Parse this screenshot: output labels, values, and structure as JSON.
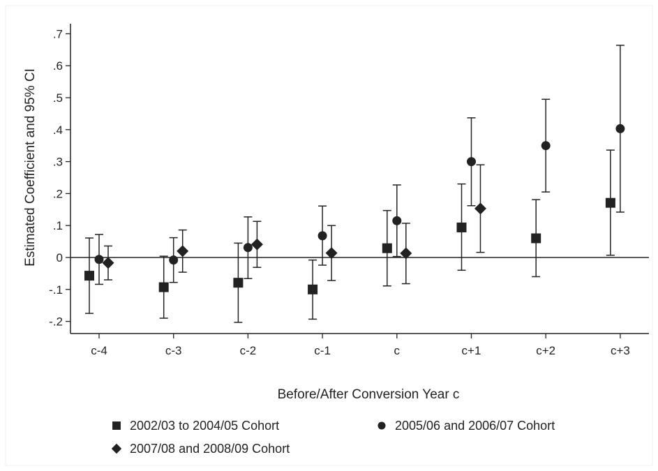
{
  "chart_data": {
    "type": "scatter",
    "title": "",
    "xlabel": "Before/After Conversion Year c",
    "ylabel": "Estimated Coefficient and 95% CI",
    "categories": [
      "c-4",
      "c-3",
      "c-2",
      "c-1",
      "c",
      "c+1",
      "c+2",
      "c+3"
    ],
    "ylim": [
      -0.2,
      0.7
    ],
    "yticks": [
      -0.2,
      -0.1,
      0,
      0.1,
      0.2,
      0.3,
      0.4,
      0.5,
      0.6,
      0.7
    ],
    "ytick_labels": [
      "-.2",
      "-.1",
      "0",
      ".1",
      ".2",
      ".3",
      ".4",
      ".5",
      ".6",
      ".7"
    ],
    "reference_line_y": 0,
    "grid": false,
    "legend_placement": "bottom",
    "series": [
      {
        "name": "2002/03 to 2004/05 Cohort",
        "marker": "square",
        "values": [
          -0.057,
          -0.093,
          -0.079,
          -0.1,
          0.029,
          0.094,
          0.06,
          0.171
        ],
        "ci_low": [
          -0.175,
          -0.19,
          -0.203,
          -0.193,
          -0.089,
          -0.04,
          -0.06,
          0.007
        ],
        "ci_high": [
          0.061,
          0.004,
          0.045,
          -0.008,
          0.147,
          0.23,
          0.181,
          0.336
        ]
      },
      {
        "name": "2005/06 and 2006/07 Cohort",
        "marker": "circle",
        "values": [
          -0.006,
          -0.008,
          0.031,
          0.068,
          0.115,
          0.3,
          0.35,
          0.403
        ],
        "ci_low": [
          -0.084,
          -0.078,
          -0.066,
          -0.024,
          0.003,
          0.162,
          0.205,
          0.142
        ],
        "ci_high": [
          0.072,
          0.062,
          0.127,
          0.161,
          0.227,
          0.437,
          0.495,
          0.664
        ]
      },
      {
        "name": "2007/08 and 2008/09 Cohort",
        "marker": "diamond",
        "values": [
          -0.017,
          0.02,
          0.041,
          0.014,
          0.013,
          0.153,
          null,
          null
        ],
        "ci_low": [
          -0.07,
          -0.046,
          -0.031,
          -0.072,
          -0.082,
          0.016,
          null,
          null
        ],
        "ci_high": [
          0.036,
          0.086,
          0.113,
          0.1,
          0.107,
          0.29,
          null,
          null
        ]
      }
    ],
    "color": "#222222"
  }
}
